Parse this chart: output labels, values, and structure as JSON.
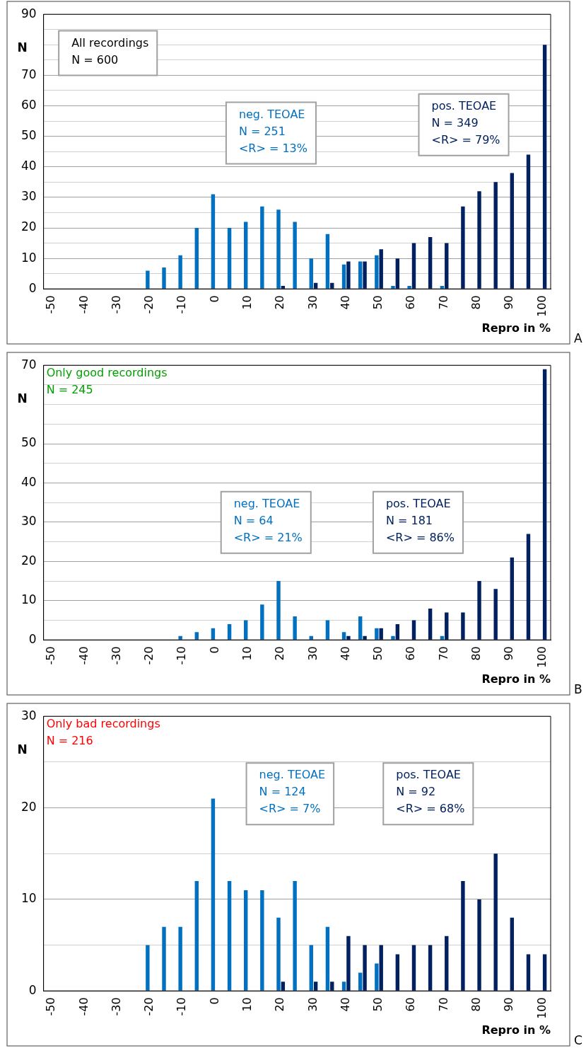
{
  "chart_data": [
    {
      "type": "bar",
      "title": "All recordings",
      "subtitle": "N = 600",
      "xlabel": "Repro in %",
      "ylabel": "N",
      "categories": [
        "-50",
        null,
        "-40",
        null,
        "-30",
        null,
        "-20",
        null,
        "-10",
        null,
        "0",
        null,
        "10",
        null,
        "20",
        null,
        "30",
        null,
        "40",
        null,
        "50",
        null,
        "60",
        null,
        "70",
        null,
        "80",
        null,
        "90",
        null,
        "100"
      ],
      "series": [
        {
          "name": "neg. TEOAE",
          "color": "#0070c0",
          "values": [
            0,
            0,
            0,
            0,
            0,
            0,
            6,
            7,
            11,
            20,
            31,
            20,
            22,
            27,
            26,
            22,
            10,
            18,
            8,
            9,
            11,
            1,
            1,
            0,
            1,
            0,
            0,
            0,
            0,
            0,
            0
          ]
        },
        {
          "name": "pos. TEOAE",
          "color": "#002060",
          "values": [
            0,
            0,
            0,
            0,
            0,
            0,
            0,
            0,
            0,
            0,
            0,
            0,
            0,
            0,
            1,
            0,
            2,
            2,
            9,
            9,
            13,
            10,
            15,
            17,
            15,
            27,
            32,
            35,
            38,
            44,
            80
          ]
        }
      ],
      "ylim": [
        0,
        90
      ],
      "yticks": [
        0,
        {
          "value": 5,
          "label": null
        },
        10,
        {
          "value": 15,
          "label": null
        },
        20,
        {
          "value": 25,
          "label": null
        },
        30,
        {
          "value": 35,
          "label": null
        },
        40,
        {
          "value": 45,
          "label": null
        },
        50,
        {
          "value": 55,
          "label": null
        },
        60,
        {
          "value": 65,
          "label": null
        },
        70,
        {
          "value": 75,
          "label": null
        },
        {
          "value": 80,
          "label": null
        },
        {
          "value": 85,
          "label": null
        },
        90
      ],
      "grid": "y",
      "annotations": [
        "N = 251\n<R> = 13%",
        "N = 349\n<R> = 79%",
        "A"
      ]
    },
    {
      "type": "bar",
      "title": "Only good recordings",
      "subtitle": "N = 245",
      "xlabel": "Repro in %",
      "ylabel": "N",
      "categories": [
        "-50",
        null,
        "-40",
        null,
        "-30",
        null,
        "-20",
        null,
        "-10",
        null,
        "0",
        null,
        "10",
        null,
        "20",
        null,
        "30",
        null,
        "40",
        null,
        "50",
        null,
        "60",
        null,
        "70",
        null,
        "80",
        null,
        "90",
        null,
        "100"
      ],
      "series": [
        {
          "name": "neg. TEOAE",
          "color": "#0070c0",
          "values": [
            0,
            0,
            0,
            0,
            0,
            0,
            0,
            0,
            1,
            2,
            3,
            4,
            5,
            9,
            15,
            6,
            1,
            5,
            2,
            6,
            3,
            1,
            0,
            0,
            1,
            0,
            0,
            0,
            0,
            0,
            0
          ]
        },
        {
          "name": "pos. TEOAE",
          "color": "#002060",
          "values": [
            0,
            0,
            0,
            0,
            0,
            0,
            0,
            0,
            0,
            0,
            0,
            0,
            0,
            0,
            0,
            0,
            0,
            0,
            1,
            1,
            3,
            4,
            5,
            8,
            7,
            7,
            15,
            13,
            21,
            27,
            69
          ]
        }
      ],
      "ylim": [
        0,
        70
      ],
      "yticks": [
        0,
        {
          "value": 5,
          "label": null
        },
        10,
        {
          "value": 15,
          "label": null
        },
        20,
        {
          "value": 25,
          "label": null
        },
        30,
        {
          "value": 35,
          "label": null
        },
        40,
        {
          "value": 45,
          "label": null
        },
        50,
        {
          "value": 55,
          "label": null
        },
        {
          "value": 60,
          "label": null
        },
        {
          "value": 65,
          "label": null
        },
        70
      ],
      "grid": "y",
      "annotations": [
        "N = 64\n<R> = 21%",
        "N = 181\n<R> = 86%",
        "B"
      ]
    },
    {
      "type": "bar",
      "title": "Only bad recordings",
      "subtitle": "N = 216",
      "xlabel": "Repro in %",
      "ylabel": "N",
      "categories": [
        "-50",
        null,
        "-40",
        null,
        "-30",
        null,
        "-20",
        null,
        "-10",
        null,
        "0",
        null,
        "10",
        null,
        "20",
        null,
        "30",
        null,
        "40",
        null,
        "50",
        null,
        "60",
        null,
        "70",
        null,
        "80",
        null,
        "90",
        null,
        "100"
      ],
      "series": [
        {
          "name": "neg. TEOAE",
          "color": "#0070c0",
          "values": [
            0,
            0,
            0,
            0,
            0,
            0,
            5,
            7,
            7,
            12,
            21,
            12,
            11,
            11,
            8,
            12,
            5,
            7,
            1,
            2,
            3,
            0,
            0,
            0,
            0,
            0,
            0,
            0,
            0,
            0,
            0
          ]
        },
        {
          "name": "pos. TEOAE",
          "color": "#002060",
          "values": [
            0,
            0,
            0,
            0,
            0,
            0,
            0,
            0,
            0,
            0,
            0,
            0,
            0,
            0,
            1,
            0,
            1,
            1,
            6,
            5,
            5,
            4,
            5,
            5,
            6,
            12,
            10,
            15,
            8,
            4,
            4
          ]
        }
      ],
      "ylim": [
        0,
        30
      ],
      "yticks": [
        0,
        {
          "value": 5,
          "label": null
        },
        10,
        {
          "value": 15,
          "label": null
        },
        20,
        {
          "value": 25,
          "label": null
        },
        30
      ],
      "grid": "y",
      "annotations": [
        "N = 124\n<R> = 7%",
        "N = 92\n<R> = 68%",
        "C"
      ]
    }
  ]
}
